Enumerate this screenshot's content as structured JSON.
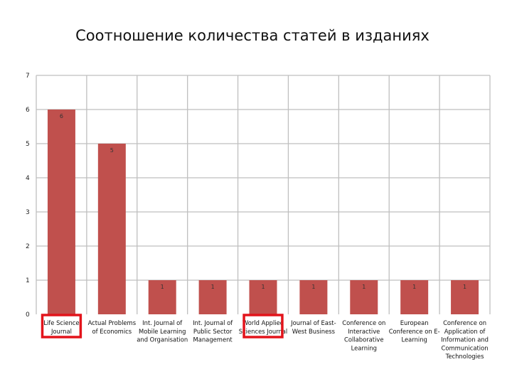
{
  "chart_data": {
    "type": "bar",
    "title": "Соотношение количества статей в изданиях",
    "xlabel": "",
    "ylabel": "",
    "ylim": [
      0,
      7
    ],
    "yticks": [
      0,
      1,
      2,
      3,
      4,
      5,
      6,
      7
    ],
    "grid": true,
    "bar_color": "#c0504d",
    "highlight_color": "#e3141b",
    "categories": [
      [
        "Life Science",
        "Journal"
      ],
      [
        "Actual Problems",
        "of Economics"
      ],
      [
        "Int. Journal of",
        "Mobile Learning",
        "and Organisation"
      ],
      [
        "Int. Journal of",
        "Public Sector",
        "Management"
      ],
      [
        "World Applied",
        "Sciences Journal"
      ],
      [
        "Journal of East-",
        "West Business"
      ],
      [
        "Conference on",
        "Interactive",
        "Collaborative",
        "Learning"
      ],
      [
        "European",
        "Conference on E-",
        "Learning"
      ],
      [
        "Conference on",
        "Application of",
        "Information and",
        "Communication",
        "Technologies"
      ]
    ],
    "values": [
      6,
      5,
      1,
      1,
      1,
      1,
      1,
      1,
      1
    ],
    "highlighted": [
      0,
      4
    ]
  }
}
